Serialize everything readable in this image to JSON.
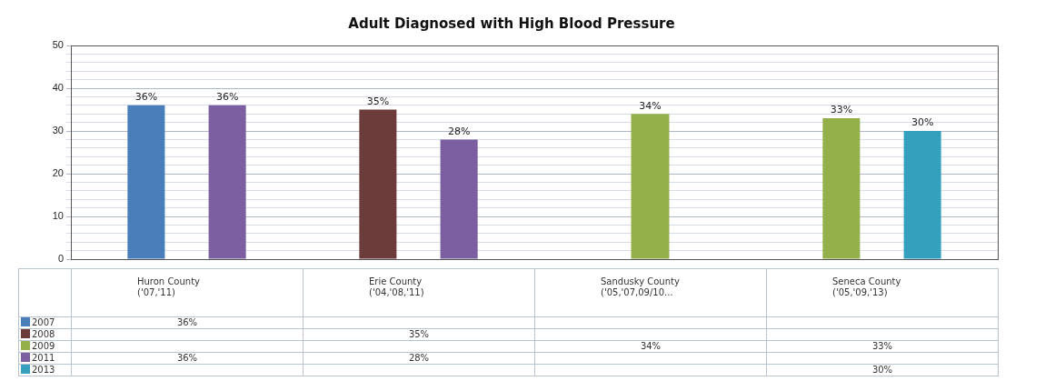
{
  "chart_data": {
    "type": "bar",
    "title": "Adult Diagnosed with High Blood Pressure",
    "categories": [
      "Huron County ('07,'11)",
      "Erie County ('04,'08,'11)",
      "Sandusky County ('05,'07,09/10...",
      "Seneca County ('05,'09,'13)"
    ],
    "series": [
      {
        "name": "2007",
        "color": "#4a7ebb",
        "values": [
          36,
          null,
          null,
          null
        ],
        "value_labels": [
          "36%",
          null,
          null,
          null
        ]
      },
      {
        "name": "2008",
        "color": "#6b3c3a",
        "values": [
          null,
          35,
          null,
          null
        ],
        "value_labels": [
          null,
          "35%",
          null,
          null
        ]
      },
      {
        "name": "2009",
        "color": "#93b04a",
        "values": [
          null,
          null,
          34,
          33
        ],
        "value_labels": [
          null,
          null,
          "34%",
          "33%"
        ]
      },
      {
        "name": "2011",
        "color": "#7b5fa0",
        "values": [
          36,
          28,
          null,
          null
        ],
        "value_labels": [
          "36%",
          "28%",
          null,
          null
        ]
      },
      {
        "name": "2013",
        "color": "#35a0bd",
        "values": [
          null,
          null,
          null,
          30
        ],
        "value_labels": [
          null,
          null,
          null,
          "30%"
        ]
      }
    ],
    "ylim": [
      0,
      50
    ],
    "yticks": [
      0,
      {
        "value": 2,
        "label": null
      },
      {
        "value": 4,
        "label": null
      },
      {
        "value": 6,
        "label": null
      },
      {
        "value": 8,
        "label": null
      },
      10,
      {
        "value": 12,
        "label": null
      },
      {
        "value": 14,
        "label": null
      },
      {
        "value": 16,
        "label": null
      },
      {
        "value": 18,
        "label": null
      },
      20,
      {
        "value": 22,
        "label": null
      },
      {
        "value": 24,
        "label": null
      },
      {
        "value": 26,
        "label": null
      },
      {
        "value": 28,
        "label": null
      },
      30,
      {
        "value": 32,
        "label": null
      },
      {
        "value": 34,
        "label": null
      },
      {
        "value": 36,
        "label": null
      },
      {
        "value": 38,
        "label": null
      },
      40,
      {
        "value": 42,
        "label": null
      },
      {
        "value": 44,
        "label": null
      },
      {
        "value": 46,
        "label": null
      },
      {
        "value": 48,
        "label": null
      },
      50
    ],
    "grid": "y",
    "legend": "bottom",
    "tick_labels": "y"
  }
}
